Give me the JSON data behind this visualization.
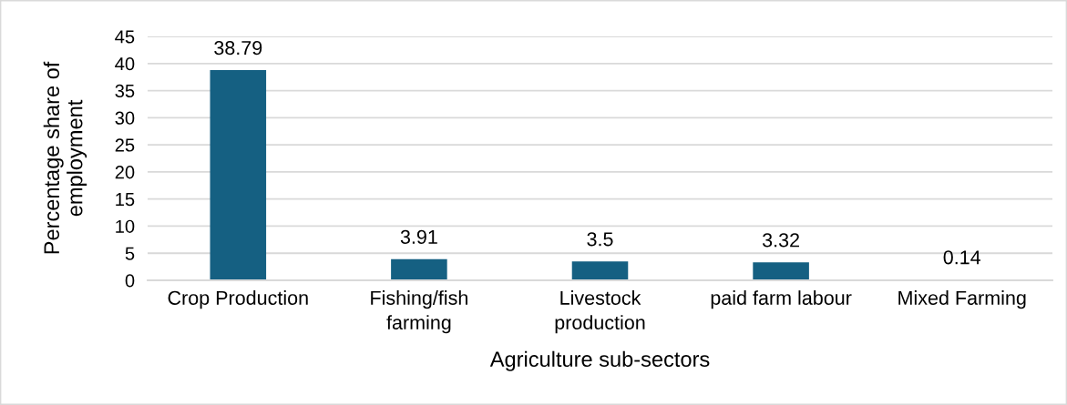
{
  "chart_data": {
    "type": "bar",
    "categories": [
      "Crop Production",
      "Fishing/fish farming",
      "Livestock production",
      "paid farm labour",
      "Mixed Farming"
    ],
    "values": [
      38.79,
      3.91,
      3.5,
      3.32,
      0.14
    ],
    "color": "#156082",
    "xlabel": "Agriculture sub-sectors",
    "ylabel": "Percentage share of employment",
    "ylim": [
      0,
      45
    ],
    "yticks": [
      0,
      5,
      10,
      15,
      20,
      25,
      30,
      35,
      40,
      45
    ],
    "grid": "y",
    "data_labels": true
  }
}
